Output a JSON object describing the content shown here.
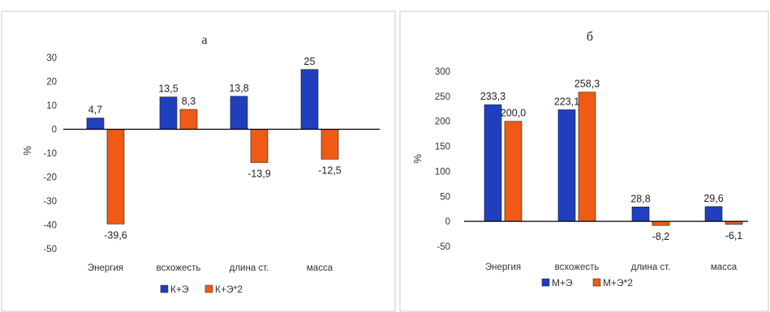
{
  "chart_data": [
    {
      "type": "bar",
      "title": "а",
      "xlabel": "",
      "ylabel": "%",
      "ylim": [
        -50,
        30
      ],
      "yticks": [
        30,
        20,
        10,
        0,
        -10,
        -20,
        -30,
        -40,
        -50
      ],
      "categories": [
        "Энергия",
        "всхожесть",
        "длина ст.",
        "масса"
      ],
      "series": [
        {
          "name": "К+Э",
          "color": "#1f3fbf",
          "values": [
            4.7,
            13.5,
            13.8,
            25
          ]
        },
        {
          "name": "К+Э*2",
          "color": "#f05a14",
          "values": [
            -39.6,
            8.3,
            -13.9,
            -12.5
          ]
        }
      ],
      "data_labels": [
        [
          "4,7",
          "13,5",
          "13,8",
          "25"
        ],
        [
          "-39,6",
          "8,3",
          "-13,9",
          "-12,5"
        ]
      ],
      "legend": "bottom",
      "grid": false
    },
    {
      "type": "bar",
      "title": "б",
      "xlabel": "",
      "ylabel": "%",
      "ylim": [
        -50,
        300
      ],
      "yticks": [
        300,
        250,
        200,
        150,
        100,
        50,
        0,
        -50
      ],
      "categories": [
        "Энергия",
        "всхожесть",
        "длина ст.",
        "масса"
      ],
      "series": [
        {
          "name": "М+Э",
          "color": "#1f3fbf",
          "values": [
            233.3,
            223.1,
            28.8,
            29.6
          ]
        },
        {
          "name": "М+Э*2",
          "color": "#f05a14",
          "values": [
            200.0,
            258.3,
            -8.2,
            -6.1
          ]
        }
      ],
      "data_labels": [
        [
          "233,3",
          "223,1",
          "28,8",
          "29,6"
        ],
        [
          "200,0",
          "258,3",
          "-8,2",
          "-6,1"
        ]
      ],
      "legend": "bottom",
      "grid": false
    }
  ]
}
